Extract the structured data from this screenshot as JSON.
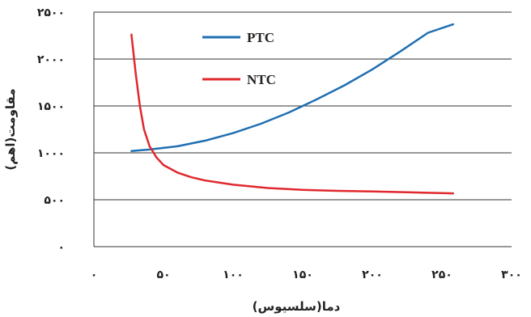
{
  "chart_data": {
    "type": "line",
    "xlabel": "دما(سلسیوس)",
    "ylabel": "مقاومت(اهم)",
    "xlim": [
      0,
      300
    ],
    "ylim": [
      0,
      2500
    ],
    "grid": "horizontal",
    "legend_position": "top-center",
    "x_ticks": [
      {
        "value": 0,
        "label": "۰"
      },
      {
        "value": 50,
        "label": "۵۰"
      },
      {
        "value": 100,
        "label": "۱۰۰"
      },
      {
        "value": 150,
        "label": "۱۵۰"
      },
      {
        "value": 200,
        "label": "۲۰۰"
      },
      {
        "value": 250,
        "label": "۲۵۰"
      },
      {
        "value": 300,
        "label": "۳۰۰"
      }
    ],
    "y_ticks": [
      {
        "value": 0,
        "label": "۰"
      },
      {
        "value": 500,
        "label": "۵۰۰"
      },
      {
        "value": 1000,
        "label": "۱۰۰۰"
      },
      {
        "value": 1500,
        "label": "۱۵۰۰"
      },
      {
        "value": 2000,
        "label": "۲۰۰۰"
      },
      {
        "value": 2500,
        "label": "۲۵۰۰"
      }
    ],
    "series": [
      {
        "name": "PTC",
        "color": "#1f6fb2",
        "x": [
          27,
          40,
          60,
          80,
          100,
          120,
          140,
          160,
          180,
          200,
          220,
          240,
          258
        ],
        "y": [
          1020,
          1035,
          1070,
          1130,
          1210,
          1310,
          1430,
          1570,
          1720,
          1890,
          2080,
          2280,
          2370
        ]
      },
      {
        "name": "NTC",
        "color": "#e0282e",
        "x": [
          27,
          30,
          33,
          36,
          40,
          45,
          50,
          60,
          70,
          80,
          100,
          125,
          150,
          175,
          200,
          225,
          258
        ],
        "y": [
          2260,
          1850,
          1500,
          1250,
          1070,
          950,
          870,
          790,
          740,
          705,
          660,
          625,
          605,
          595,
          588,
          580,
          568
        ]
      }
    ]
  }
}
